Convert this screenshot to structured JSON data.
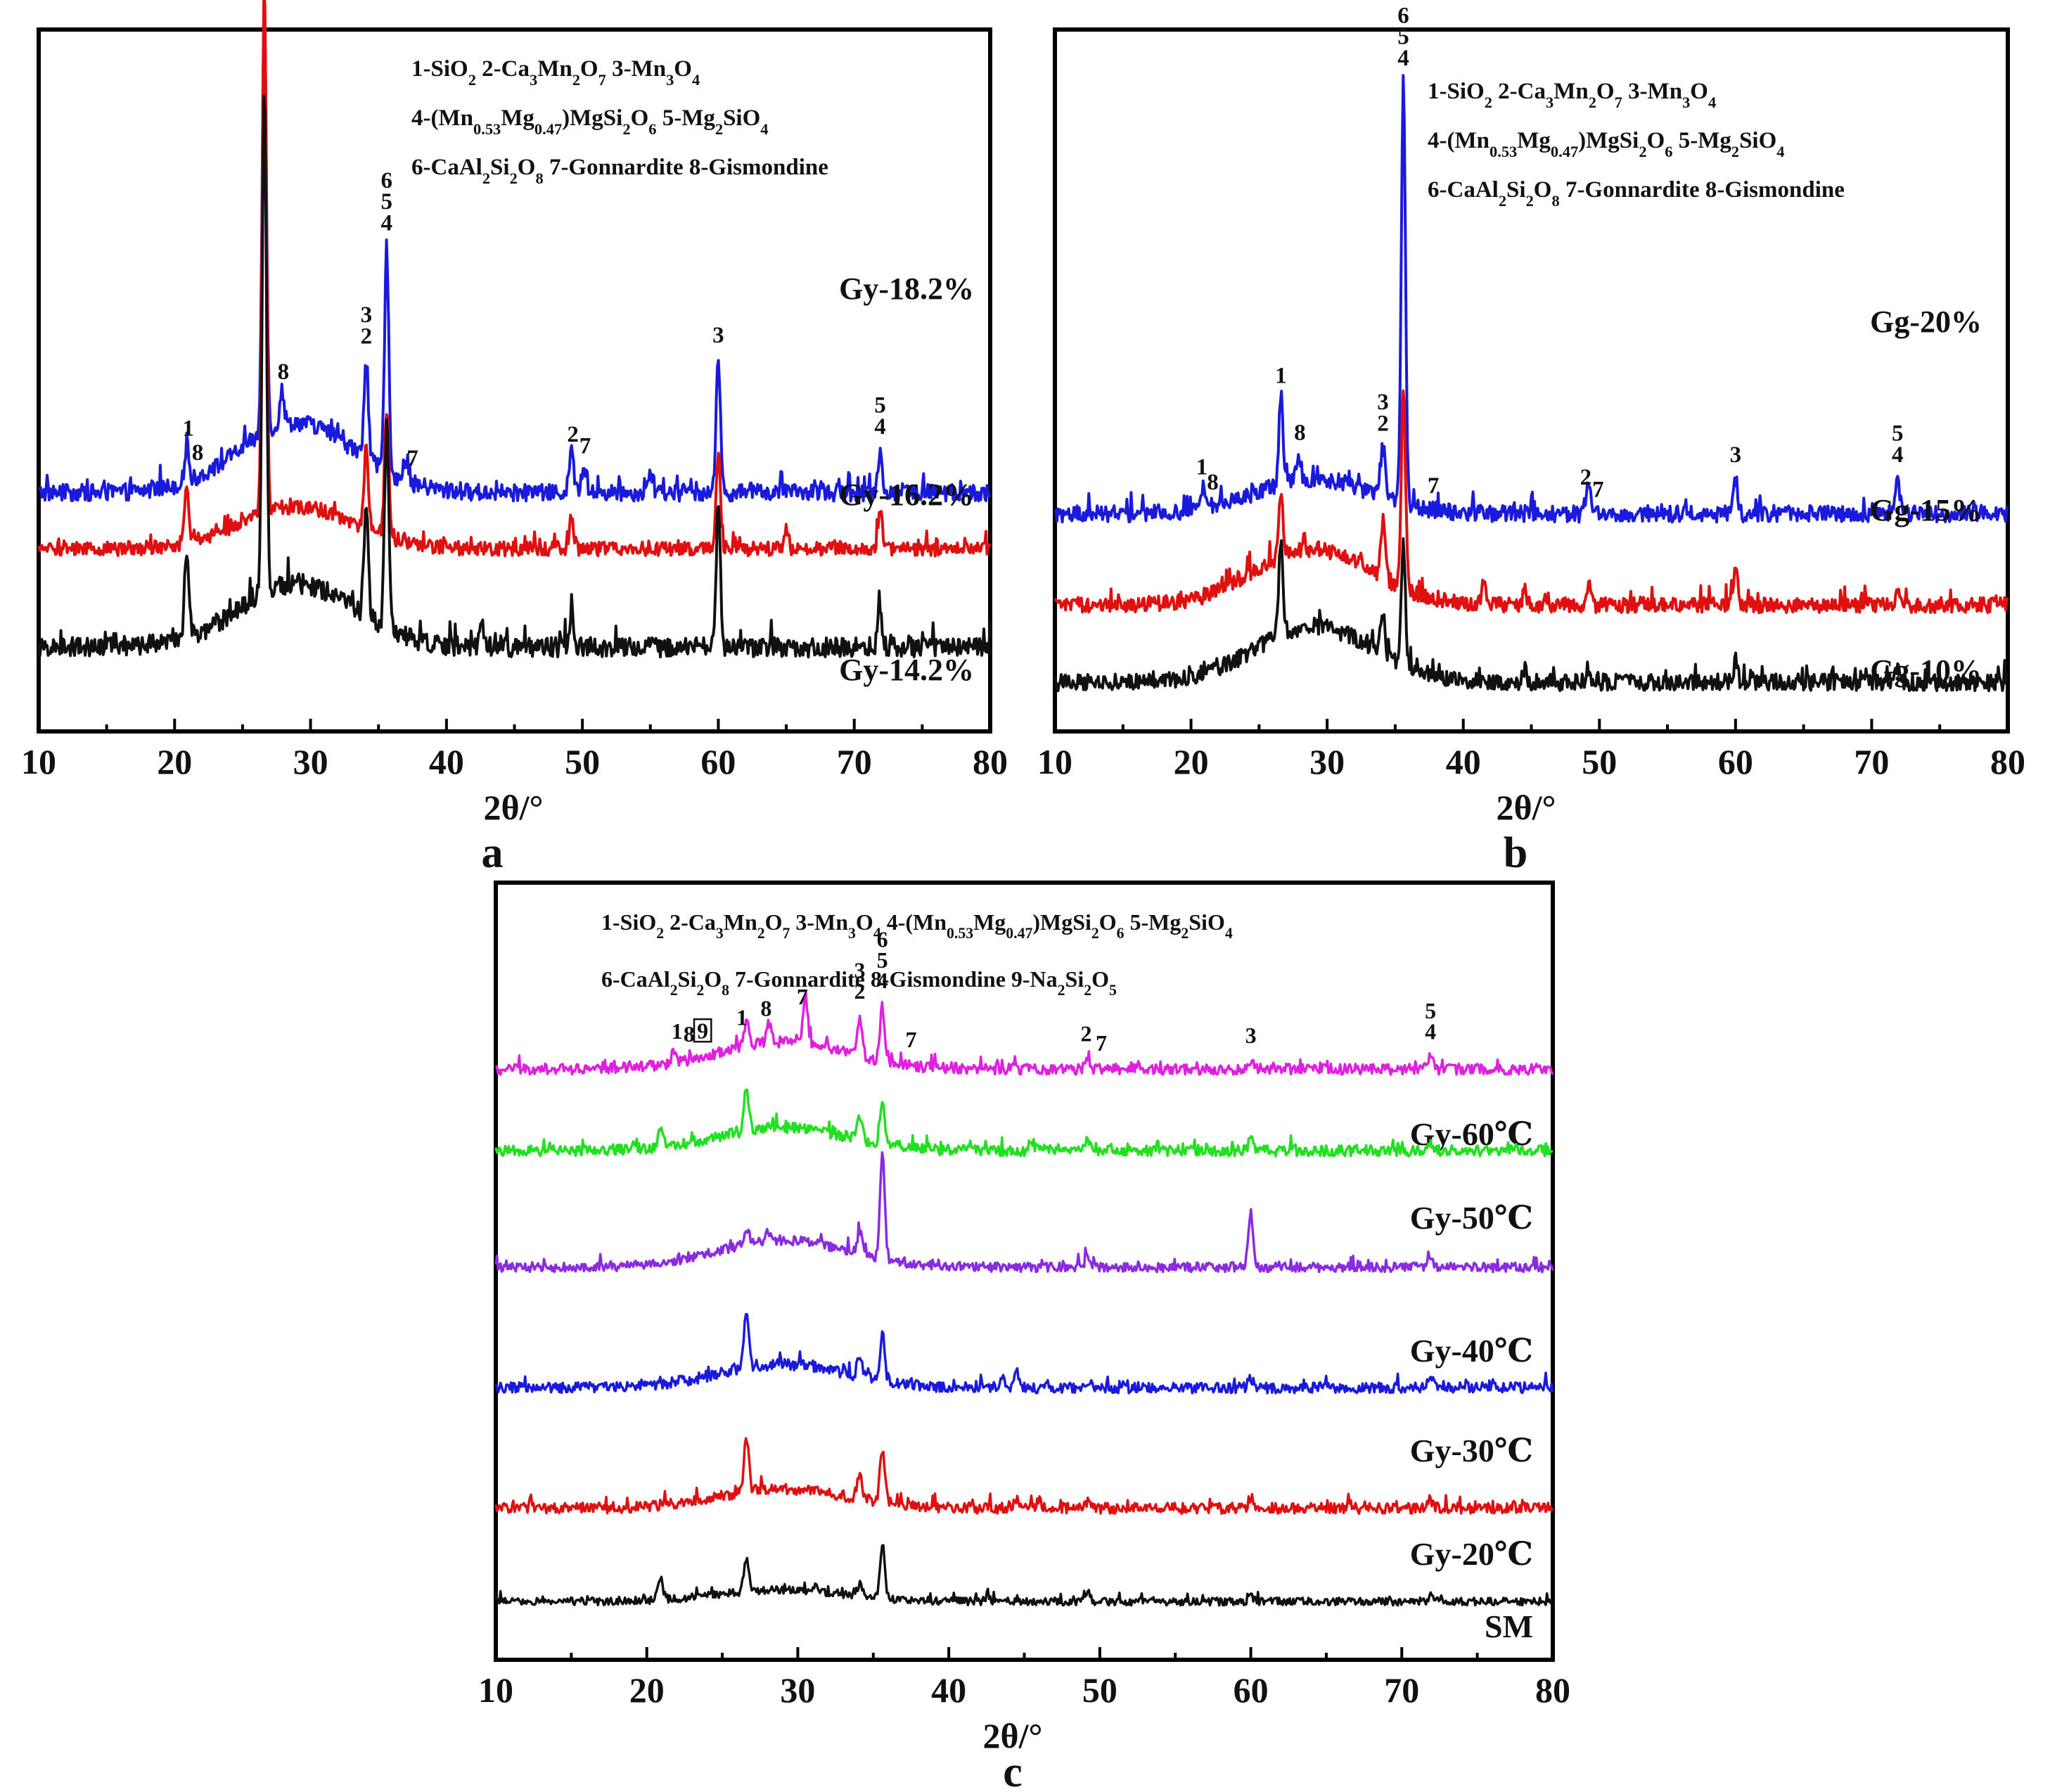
{
  "chart_data": [
    {
      "type": "line",
      "panel_label": "a",
      "xlabel": "2θ/°",
      "xlim": [
        10,
        80
      ],
      "xticks": [
        "10",
        "20",
        "30",
        "40",
        "50",
        "60",
        "70",
        "80"
      ],
      "legend_lines": [
        [
          {
            "t": "1-SiO"
          },
          {
            "t": "2",
            "s": 1
          },
          {
            "t": "  2-Ca"
          },
          {
            "t": "3",
            "s": 1
          },
          {
            "t": "Mn"
          },
          {
            "t": "2",
            "s": 1
          },
          {
            "t": "O"
          },
          {
            "t": "7",
            "s": 1
          },
          {
            "t": "  3-Mn"
          },
          {
            "t": "3",
            "s": 1
          },
          {
            "t": "O"
          },
          {
            "t": "4",
            "s": 1
          }
        ],
        [
          {
            "t": "4-(Mn"
          },
          {
            "t": "0.53",
            "s": 1
          },
          {
            "t": "Mg"
          },
          {
            "t": "0.47",
            "s": 1
          },
          {
            "t": ")MgSi"
          },
          {
            "t": "2",
            "s": 1
          },
          {
            "t": "O"
          },
          {
            "t": "6",
            "s": 1
          },
          {
            "t": "  5-Mg"
          },
          {
            "t": "2",
            "s": 1
          },
          {
            "t": "SiO"
          },
          {
            "t": "4",
            "s": 1
          }
        ],
        [
          {
            "t": "6-CaAl"
          },
          {
            "t": "2",
            "s": 1
          },
          {
            "t": "Si"
          },
          {
            "t": "2",
            "s": 1
          },
          {
            "t": "O"
          },
          {
            "t": "8",
            "s": 1
          },
          {
            "t": "  7-Gonnardite     8-Gismondine"
          }
        ]
      ],
      "series": [
        {
          "name": "Gy-18.2%",
          "color": "#1a1adc",
          "baseline": 0.34,
          "amorph": 0.1,
          "noise": 0.012,
          "peaks": [
            [
              20.9,
              0.05
            ],
            [
              26.6,
              0.62
            ],
            [
              27.9,
              0.05
            ],
            [
              34.1,
              0.14
            ],
            [
              35.6,
              0.32
            ],
            [
              37.1,
              0.03
            ],
            [
              49.2,
              0.06
            ],
            [
              50.1,
              0.04
            ],
            [
              55.0,
              0.03
            ],
            [
              60.0,
              0.19
            ],
            [
              71.9,
              0.06
            ]
          ]
        },
        {
          "name": "Gy-16.2%",
          "color": "#e01010",
          "baseline": 0.26,
          "amorph": 0.06,
          "noise": 0.01,
          "peaks": [
            [
              20.9,
              0.08
            ],
            [
              26.6,
              0.75
            ],
            [
              34.1,
              0.12
            ],
            [
              35.6,
              0.18
            ],
            [
              49.2,
              0.05
            ],
            [
              60.0,
              0.14
            ],
            [
              65.0,
              0.03
            ],
            [
              71.9,
              0.06
            ]
          ]
        },
        {
          "name": "Gy-14.2%",
          "color": "#111111",
          "baseline": 0.12,
          "amorph": 0.09,
          "noise": 0.014,
          "peaks": [
            [
              20.9,
              0.12
            ],
            [
              26.6,
              0.72
            ],
            [
              34.1,
              0.16
            ],
            [
              35.6,
              0.29
            ],
            [
              42.6,
              0.03
            ],
            [
              49.2,
              0.05
            ],
            [
              60.0,
              0.19
            ],
            [
              71.9,
              0.05
            ]
          ]
        }
      ],
      "peak_annotations": [
        {
          "x": 26.6,
          "labels": [
            "1"
          ]
        },
        {
          "x": 21.0,
          "labels": [
            "1"
          ]
        },
        {
          "x": 21.7,
          "labels": [
            "8"
          ]
        },
        {
          "x": 28.0,
          "labels": [
            "8"
          ]
        },
        {
          "x": 34.1,
          "labels": [
            "3",
            "2"
          ]
        },
        {
          "x": 35.6,
          "labels": [
            "6",
            "5",
            "4"
          ]
        },
        {
          "x": 37.5,
          "labels": [
            "7"
          ]
        },
        {
          "x": 49.3,
          "labels": [
            "2"
          ]
        },
        {
          "x": 50.2,
          "labels": [
            "7"
          ]
        },
        {
          "x": 60.0,
          "labels": [
            "3"
          ]
        },
        {
          "x": 71.9,
          "labels": [
            "5",
            "4"
          ]
        }
      ]
    },
    {
      "type": "line",
      "panel_label": "b",
      "xlabel": "2θ/°",
      "xlim": [
        10,
        80
      ],
      "xticks": [
        "10",
        "20",
        "30",
        "40",
        "50",
        "60",
        "70",
        "80"
      ],
      "legend_lines": [
        [
          {
            "t": "1-SiO"
          },
          {
            "t": "2",
            "s": 1
          },
          {
            "t": "  2-Ca"
          },
          {
            "t": "3",
            "s": 1
          },
          {
            "t": "Mn"
          },
          {
            "t": "2",
            "s": 1
          },
          {
            "t": "O"
          },
          {
            "t": "7",
            "s": 1
          },
          {
            "t": "  3-Mn"
          },
          {
            "t": "3",
            "s": 1
          },
          {
            "t": "O"
          },
          {
            "t": "4",
            "s": 1
          }
        ],
        [
          {
            "t": "4-(Mn"
          },
          {
            "t": "0.53",
            "s": 1
          },
          {
            "t": "Mg"
          },
          {
            "t": "0.47",
            "s": 1
          },
          {
            "t": ")MgSi"
          },
          {
            "t": "2",
            "s": 1
          },
          {
            "t": "O"
          },
          {
            "t": "6",
            "s": 1
          },
          {
            "t": "  5-Mg"
          },
          {
            "t": "2",
            "s": 1
          },
          {
            "t": "SiO"
          },
          {
            "t": "4",
            "s": 1
          }
        ],
        [
          {
            "t": "6-CaAl"
          },
          {
            "t": "2",
            "s": 1
          },
          {
            "t": "Si"
          },
          {
            "t": "2",
            "s": 1
          },
          {
            "t": "O"
          },
          {
            "t": "8",
            "s": 1
          },
          {
            "t": "  7-Gonnardite     8-Gismondine"
          }
        ]
      ],
      "series": [
        {
          "name": "Gg-20%",
          "color": "#1a1adc",
          "baseline": 0.31,
          "amorph": 0.05,
          "noise": 0.012,
          "peaks": [
            [
              20.9,
              0.03
            ],
            [
              26.6,
              0.12
            ],
            [
              27.9,
              0.04
            ],
            [
              34.1,
              0.07
            ],
            [
              35.6,
              0.6
            ],
            [
              49.2,
              0.04
            ],
            [
              60.0,
              0.05
            ],
            [
              71.9,
              0.05
            ]
          ]
        },
        {
          "name": "Gg-15%",
          "color": "#e01010",
          "baseline": 0.18,
          "amorph": 0.08,
          "noise": 0.011,
          "peaks": [
            [
              26.6,
              0.09
            ],
            [
              34.1,
              0.08
            ],
            [
              35.6,
              0.28
            ],
            [
              41.5,
              0.03
            ],
            [
              44.5,
              0.02
            ],
            [
              49.2,
              0.03
            ],
            [
              60.0,
              0.06
            ],
            [
              71.9,
              0.02
            ]
          ]
        },
        {
          "name": "Gg-10%",
          "color": "#111111",
          "baseline": 0.07,
          "amorph": 0.08,
          "noise": 0.012,
          "peaks": [
            [
              26.6,
              0.13
            ],
            [
              34.1,
              0.06
            ],
            [
              35.6,
              0.17
            ],
            [
              44.5,
              0.02
            ],
            [
              49.2,
              0.02
            ],
            [
              60.0,
              0.03
            ],
            [
              71.9,
              0.02
            ]
          ]
        }
      ],
      "peak_annotations": [
        {
          "x": 26.6,
          "labels": [
            "1"
          ]
        },
        {
          "x": 20.8,
          "labels": [
            "1"
          ]
        },
        {
          "x": 21.6,
          "labels": [
            "8"
          ]
        },
        {
          "x": 28.0,
          "labels": [
            "8"
          ]
        },
        {
          "x": 34.1,
          "labels": [
            "3",
            "2"
          ]
        },
        {
          "x": 35.6,
          "labels": [
            "6",
            "5",
            "4"
          ]
        },
        {
          "x": 37.8,
          "labels": [
            "7"
          ]
        },
        {
          "x": 49.0,
          "labels": [
            "2"
          ]
        },
        {
          "x": 49.9,
          "labels": [
            "7"
          ]
        },
        {
          "x": 60.0,
          "labels": [
            "3"
          ]
        },
        {
          "x": 71.9,
          "labels": [
            "5",
            "4"
          ]
        }
      ]
    },
    {
      "type": "line",
      "panel_label": "c",
      "xlabel": "2θ/°",
      "xlim": [
        10,
        80
      ],
      "xticks": [
        "10",
        "20",
        "30",
        "40",
        "50",
        "60",
        "70",
        "80"
      ],
      "legend_lines": [
        [
          {
            "t": "1-SiO"
          },
          {
            "t": "2",
            "s": 1
          },
          {
            "t": "  2-Ca"
          },
          {
            "t": "3",
            "s": 1
          },
          {
            "t": "Mn"
          },
          {
            "t": "2",
            "s": 1
          },
          {
            "t": "O"
          },
          {
            "t": "7",
            "s": 1
          },
          {
            "t": "  3-Mn"
          },
          {
            "t": "3",
            "s": 1
          },
          {
            "t": "O"
          },
          {
            "t": "4",
            "s": 1
          },
          {
            "t": "  4-(Mn"
          },
          {
            "t": "0.53",
            "s": 1
          },
          {
            "t": "Mg"
          },
          {
            "t": "0.47",
            "s": 1
          },
          {
            "t": ")MgSi"
          },
          {
            "t": "2",
            "s": 1
          },
          {
            "t": "O"
          },
          {
            "t": "6",
            "s": 1
          },
          {
            "t": "  5-Mg"
          },
          {
            "t": "2",
            "s": 1
          },
          {
            "t": "SiO"
          },
          {
            "t": "4",
            "s": 1
          }
        ],
        [
          {
            "t": "6-CaAl"
          },
          {
            "t": "2",
            "s": 1
          },
          {
            "t": "Si"
          },
          {
            "t": "2",
            "s": 1
          },
          {
            "t": "O"
          },
          {
            "t": "8",
            "s": 1
          },
          {
            "t": "                        7-Gonnardite  8-Gismondine  9-Na"
          },
          {
            "t": "2",
            "s": 1
          },
          {
            "t": "Si"
          },
          {
            "t": "2",
            "s": 1
          },
          {
            "t": "O"
          },
          {
            "t": "5",
            "s": 1
          }
        ]
      ],
      "series": [
        {
          "name": "Gy-60℃",
          "color": "#e020e0",
          "baseline": 0.76,
          "amorph": 0.035,
          "noise": 0.007,
          "peaks": [
            [
              21.8,
              0.015
            ],
            [
              26.6,
              0.03
            ],
            [
              28.1,
              0.025
            ],
            [
              30.5,
              0.06
            ],
            [
              34.1,
              0.05
            ],
            [
              35.6,
              0.07
            ],
            [
              49.2,
              0.015
            ],
            [
              60.0,
              0.01
            ],
            [
              71.9,
              0.015
            ]
          ]
        },
        {
          "name": "Gy-50℃",
          "color": "#20e020",
          "baseline": 0.655,
          "amorph": 0.03,
          "noise": 0.007,
          "peaks": [
            [
              20.9,
              0.02
            ],
            [
              26.6,
              0.055
            ],
            [
              34.1,
              0.03
            ],
            [
              35.6,
              0.05
            ],
            [
              45.5,
              0.012
            ],
            [
              49.2,
              0.015
            ],
            [
              60.0,
              0.015
            ],
            [
              71.9,
              0.01
            ]
          ]
        },
        {
          "name": "Gy-40℃",
          "color": "#8a2be2",
          "baseline": 0.505,
          "amorph": 0.035,
          "noise": 0.006,
          "peaks": [
            [
              26.6,
              0.02
            ],
            [
              28.0,
              0.015
            ],
            [
              34.1,
              0.03
            ],
            [
              35.6,
              0.14
            ],
            [
              49.2,
              0.015
            ],
            [
              60.0,
              0.07
            ],
            [
              71.9,
              0.015
            ]
          ]
        },
        {
          "name": "Gy-30℃",
          "color": "#1a1adc",
          "baseline": 0.35,
          "amorph": 0.03,
          "noise": 0.007,
          "peaks": [
            [
              26.6,
              0.07
            ],
            [
              34.1,
              0.03
            ],
            [
              35.6,
              0.06
            ],
            [
              43.5,
              0.012
            ],
            [
              44.5,
              0.02
            ],
            [
              49.2,
              0.01
            ],
            [
              60.0,
              0.012
            ],
            [
              71.9,
              0.012
            ]
          ]
        },
        {
          "name": "Gy-20℃",
          "color": "#e01010",
          "baseline": 0.195,
          "amorph": 0.025,
          "noise": 0.007,
          "peaks": [
            [
              26.6,
              0.07
            ],
            [
              34.1,
              0.03
            ],
            [
              35.6,
              0.07
            ],
            [
              44.5,
              0.012
            ],
            [
              46.0,
              0.01
            ],
            [
              49.2,
              0.01
            ],
            [
              60.0,
              0.015
            ],
            [
              71.9,
              0.008
            ]
          ]
        },
        {
          "name": "SM",
          "color": "#111111",
          "baseline": 0.075,
          "amorph": 0.015,
          "noise": 0.005,
          "peaks": [
            [
              20.9,
              0.03
            ],
            [
              26.6,
              0.04
            ],
            [
              34.1,
              0.015
            ],
            [
              35.6,
              0.07
            ],
            [
              42.6,
              0.008
            ],
            [
              49.2,
              0.012
            ],
            [
              60.0,
              0.008
            ],
            [
              71.9,
              0.008
            ]
          ]
        }
      ],
      "peak_annotations": [
        {
          "x": 22.0,
          "labels": [
            "1"
          ]
        },
        {
          "x": 22.8,
          "labels": [
            "8"
          ]
        },
        {
          "x": 23.7,
          "labels": [
            "9"
          ],
          "boxed": true
        },
        {
          "x": 26.3,
          "labels": [
            "1"
          ]
        },
        {
          "x": 27.9,
          "labels": [
            "8"
          ]
        },
        {
          "x": 30.3,
          "labels": [
            "7"
          ]
        },
        {
          "x": 34.1,
          "labels": [
            "3",
            "2"
          ]
        },
        {
          "x": 35.6,
          "labels": [
            "6",
            "5",
            "4"
          ]
        },
        {
          "x": 37.5,
          "labels": [
            "7"
          ]
        },
        {
          "x": 49.1,
          "labels": [
            "2"
          ]
        },
        {
          "x": 50.1,
          "labels": [
            "7"
          ]
        },
        {
          "x": 60.0,
          "labels": [
            "3"
          ]
        },
        {
          "x": 71.9,
          "labels": [
            "5",
            "4"
          ]
        }
      ]
    }
  ]
}
